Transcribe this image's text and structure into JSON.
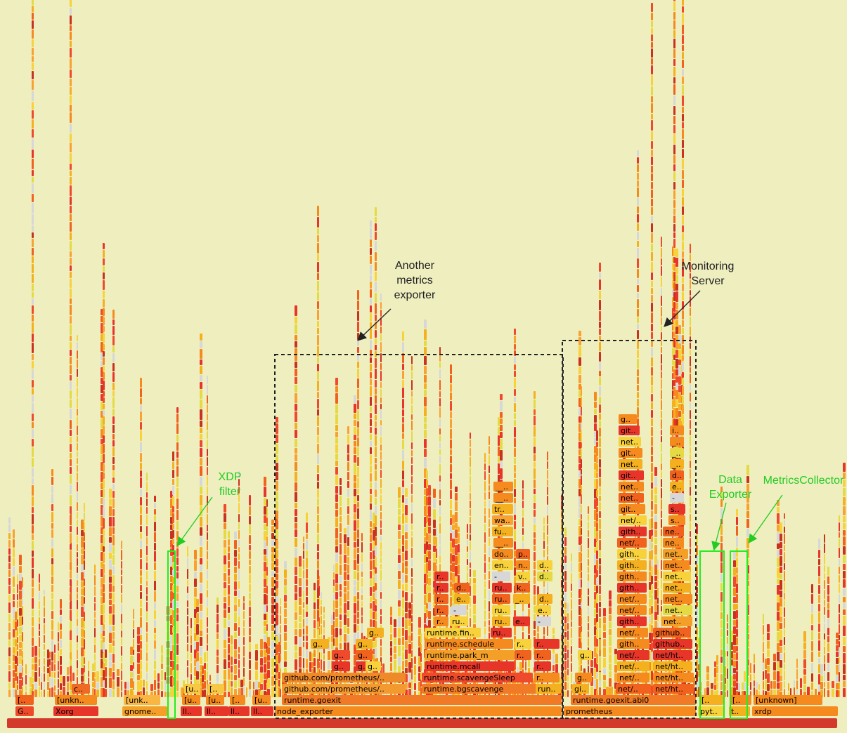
{
  "chart_data": {
    "type": "flamegraph",
    "frames": [
      {
        "label": "G..",
        "depth": 1
      },
      {
        "label": "[..",
        "depth": 2
      },
      {
        "label": "Xorg",
        "depth": 1
      },
      {
        "label": "[unkn..",
        "depth": 2
      },
      {
        "label": "c..",
        "depth": 3
      },
      {
        "label": "gnome..",
        "depth": 1
      },
      {
        "label": "[unk..",
        "depth": 2
      },
      {
        "label": "ll..",
        "depth": 1
      },
      {
        "label": "[u..",
        "depth": 2
      },
      {
        "label": "[u..",
        "depth": 3
      },
      {
        "label": "ll..",
        "depth": 1
      },
      {
        "label": "[u..",
        "depth": 2
      },
      {
        "label": "[..",
        "depth": 3
      },
      {
        "label": "ll..",
        "depth": 1
      },
      {
        "label": "[..",
        "depth": 2
      },
      {
        "label": "ll..",
        "depth": 1
      },
      {
        "label": "[u..",
        "depth": 2
      },
      {
        "label": "node_exporter",
        "depth": 1
      },
      {
        "label": "runtime.goexit",
        "depth": 2
      },
      {
        "label": "github.com/prometheus/..",
        "depth": 3
      },
      {
        "label": "github.com/prometheus/..",
        "depth": 4
      },
      {
        "label": "g..",
        "depth": 5
      },
      {
        "label": "g..",
        "depth": 6
      },
      {
        "label": "g..",
        "depth": 7
      },
      {
        "label": "g..",
        "depth": 5
      },
      {
        "label": "g..",
        "depth": 6
      },
      {
        "label": "g..",
        "depth": 7
      },
      {
        "label": "g..",
        "depth": 8
      },
      {
        "label": "g..",
        "depth": 5
      },
      {
        "label": "runtime.bgscavenge",
        "depth": 3
      },
      {
        "label": "runtime.scavengeSleep",
        "depth": 4
      },
      {
        "label": "runtime.mcall",
        "depth": 5
      },
      {
        "label": "runtime.park_m",
        "depth": 6
      },
      {
        "label": "runtime.schedule",
        "depth": 7
      },
      {
        "label": "runtime.fin..",
        "depth": 8
      },
      {
        "label": "r..",
        "depth": 9
      },
      {
        "label": "r..",
        "depth": 10
      },
      {
        "label": "r..",
        "depth": 11
      },
      {
        "label": "r..",
        "depth": 12
      },
      {
        "label": "r..",
        "depth": 13
      },
      {
        "label": "ru..",
        "depth": 9
      },
      {
        "label": "-",
        "depth": 10
      },
      {
        "label": "e..",
        "depth": 11
      },
      {
        "label": "d..",
        "depth": 12
      },
      {
        "label": "ru..",
        "depth": 8
      },
      {
        "label": "ru..",
        "depth": 9
      },
      {
        "label": "ru..",
        "depth": 10
      },
      {
        "label": "ru..",
        "depth": 11
      },
      {
        "label": "ru..",
        "depth": 12
      },
      {
        "label": "-",
        "depth": 13
      },
      {
        "label": "en..",
        "depth": 14
      },
      {
        "label": "do..",
        "depth": 15
      },
      {
        "label": "fu..",
        "depth": 17
      },
      {
        "label": "wa..",
        "depth": 18
      },
      {
        "label": "tr..",
        "depth": 19
      },
      {
        "label": "e..",
        "depth": 9
      },
      {
        "label": "_..",
        "depth": 11
      },
      {
        "label": "k..",
        "depth": 12
      },
      {
        "label": "v..",
        "depth": 13
      },
      {
        "label": "n..",
        "depth": 14
      },
      {
        "label": "p..",
        "depth": 15
      },
      {
        "label": "__..",
        "depth": 16
      },
      {
        "label": "__..",
        "depth": 20
      },
      {
        "label": "__..",
        "depth": 21
      },
      {
        "label": "r..",
        "depth": 6
      },
      {
        "label": "r..",
        "depth": 7
      },
      {
        "label": "r..",
        "depth": 5
      },
      {
        "label": "r..",
        "depth": 6
      },
      {
        "label": "-",
        "depth": 9
      },
      {
        "label": "e..",
        "depth": 10
      },
      {
        "label": "d..",
        "depth": 11
      },
      {
        "label": "d..",
        "depth": 13
      },
      {
        "label": "d..",
        "depth": 14
      },
      {
        "label": "r..",
        "depth": 4
      },
      {
        "label": "r..",
        "depth": 7
      },
      {
        "label": "run..",
        "depth": 3
      },
      {
        "label": "prometheus",
        "depth": 1
      },
      {
        "label": "runtime.goexit.abi0",
        "depth": 2
      },
      {
        "label": "gi..",
        "depth": 3
      },
      {
        "label": "g..",
        "depth": 4
      },
      {
        "label": "g..",
        "depth": 6
      },
      {
        "label": "net/..",
        "depth": 3
      },
      {
        "label": "net/..",
        "depth": 4
      },
      {
        "label": "net/..",
        "depth": 5
      },
      {
        "label": "net/..",
        "depth": 6
      },
      {
        "label": "gith..",
        "depth": 7
      },
      {
        "label": "net/..",
        "depth": 8
      },
      {
        "label": "gith..",
        "depth": 9
      },
      {
        "label": "net/..",
        "depth": 10
      },
      {
        "label": "net/..",
        "depth": 11
      },
      {
        "label": "gith..",
        "depth": 12
      },
      {
        "label": "gith..",
        "depth": 13
      },
      {
        "label": "gith..",
        "depth": 14
      },
      {
        "label": "gith..",
        "depth": 15
      },
      {
        "label": "net/..",
        "depth": 16
      },
      {
        "label": "gith..",
        "depth": 17
      },
      {
        "label": "net/..",
        "depth": 18
      },
      {
        "label": "git..",
        "depth": 19
      },
      {
        "label": "net..",
        "depth": 20
      },
      {
        "label": "net..",
        "depth": 21
      },
      {
        "label": "git..",
        "depth": 22
      },
      {
        "label": "net..",
        "depth": 23
      },
      {
        "label": "git..",
        "depth": 24
      },
      {
        "label": "net..",
        "depth": 25
      },
      {
        "label": "git..",
        "depth": 26
      },
      {
        "label": "g..",
        "depth": 27
      },
      {
        "label": "net/ht..",
        "depth": 3
      },
      {
        "label": "net/ht..",
        "depth": 4
      },
      {
        "label": "net/ht..",
        "depth": 5
      },
      {
        "label": "net/ht..",
        "depth": 6
      },
      {
        "label": "github..",
        "depth": 7
      },
      {
        "label": "github..",
        "depth": 8
      },
      {
        "label": "net..",
        "depth": 9
      },
      {
        "label": "net..",
        "depth": 10
      },
      {
        "label": "net..",
        "depth": 11
      },
      {
        "label": "net..",
        "depth": 12
      },
      {
        "label": "net..",
        "depth": 13
      },
      {
        "label": "net..",
        "depth": 14
      },
      {
        "label": "net..",
        "depth": 15
      },
      {
        "label": "ne..",
        "depth": 16
      },
      {
        "label": "ne..",
        "depth": 17
      },
      {
        "label": "s..",
        "depth": 18
      },
      {
        "label": "s..",
        "depth": 19
      },
      {
        "label": "-",
        "depth": 20
      },
      {
        "label": "e..",
        "depth": 21
      },
      {
        "label": "d..",
        "depth": 22
      },
      {
        "label": "_..",
        "depth": 23
      },
      {
        "label": "_..",
        "depth": 24
      },
      {
        "label": "_..",
        "depth": 25
      },
      {
        "label": "i..",
        "depth": 26
      },
      {
        "label": "pyt..",
        "depth": 1
      },
      {
        "label": "[..",
        "depth": 2
      },
      {
        "label": "t..",
        "depth": 1
      },
      {
        "label": "[..",
        "depth": 2
      },
      {
        "label": "xrdp",
        "depth": 1
      },
      {
        "label": "[unknown]",
        "depth": 2
      }
    ],
    "annotations": [
      {
        "text": [
          "XDP",
          "filter"
        ],
        "color": "#22cc22"
      },
      {
        "text": [
          "Another",
          "metrics",
          "exporter"
        ],
        "color": "#222222"
      },
      {
        "text": [
          "Monitoring",
          "Server"
        ],
        "color": "#222222"
      },
      {
        "text": [
          "Data",
          "Exporter"
        ],
        "color": "#22cc22"
      },
      {
        "text": [
          "MetricsCollector"
        ],
        "color": "#22cc22"
      }
    ],
    "colors": {
      "background": "#eeeebf",
      "root": "#d33a2b",
      "highlight_box": "#22ee22",
      "region_box": "#222222",
      "palette": [
        "#e8352a",
        "#f0621e",
        "#f58a1f",
        "#f4b01e",
        "#f7d23a",
        "#e5da44",
        "#d7d7d7",
        "#c8321e",
        "#ef4a2c",
        "#f9a232"
      ]
    }
  }
}
